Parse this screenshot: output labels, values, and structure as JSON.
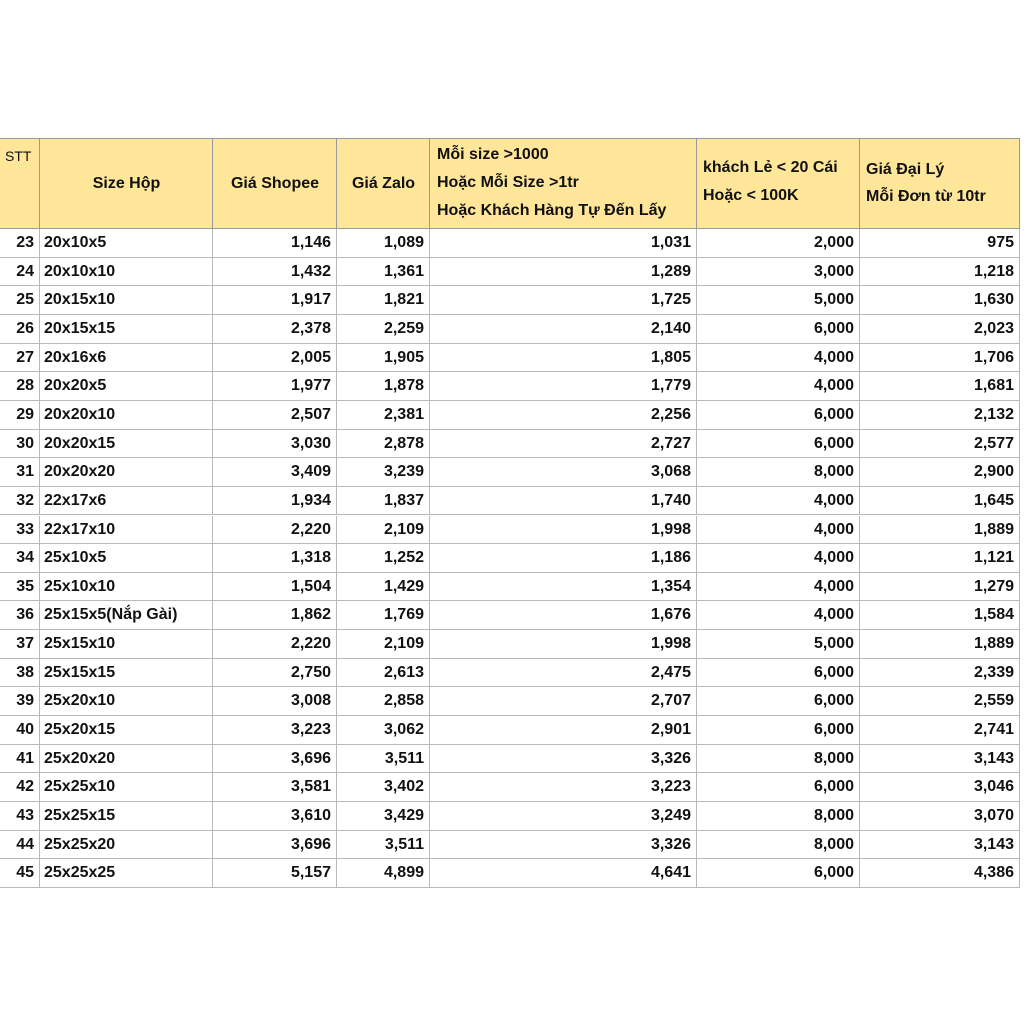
{
  "table": {
    "header": [
      [
        "STT"
      ],
      [
        "Size Hộp"
      ],
      [
        "Giá Shopee"
      ],
      [
        "Giá Zalo"
      ],
      [
        "Mỗi size >1000",
        "Hoặc Mỗi Size >1tr",
        "Hoặc Khách Hàng Tự Đến Lấy"
      ],
      [
        "khách Lẻ < 20 Cái",
        "Hoặc < 100K"
      ],
      [
        "Giá Đại Lý",
        "Mỗi Đơn từ 10tr"
      ]
    ],
    "rows": [
      [
        "23",
        "20x10x5",
        "1,146",
        "1,089",
        "1,031",
        "2,000",
        "975"
      ],
      [
        "24",
        "20x10x10",
        "1,432",
        "1,361",
        "1,289",
        "3,000",
        "1,218"
      ],
      [
        "25",
        "20x15x10",
        "1,917",
        "1,821",
        "1,725",
        "5,000",
        "1,630"
      ],
      [
        "26",
        "20x15x15",
        "2,378",
        "2,259",
        "2,140",
        "6,000",
        "2,023"
      ],
      [
        "27",
        "20x16x6",
        "2,005",
        "1,905",
        "1,805",
        "4,000",
        "1,706"
      ],
      [
        "28",
        "20x20x5",
        "1,977",
        "1,878",
        "1,779",
        "4,000",
        "1,681"
      ],
      [
        "29",
        "20x20x10",
        "2,507",
        "2,381",
        "2,256",
        "6,000",
        "2,132"
      ],
      [
        "30",
        "20x20x15",
        "3,030",
        "2,878",
        "2,727",
        "6,000",
        "2,577"
      ],
      [
        "31",
        "20x20x20",
        "3,409",
        "3,239",
        "3,068",
        "8,000",
        "2,900"
      ],
      [
        "32",
        "22x17x6",
        "1,934",
        "1,837",
        "1,740",
        "4,000",
        "1,645"
      ],
      [
        "33",
        "22x17x10",
        "2,220",
        "2,109",
        "1,998",
        "4,000",
        "1,889"
      ],
      [
        "34",
        "25x10x5",
        "1,318",
        "1,252",
        "1,186",
        "4,000",
        "1,121"
      ],
      [
        "35",
        "25x10x10",
        "1,504",
        "1,429",
        "1,354",
        "4,000",
        "1,279"
      ],
      [
        "36",
        "25x15x5(Nắp Gài)",
        "1,862",
        "1,769",
        "1,676",
        "4,000",
        "1,584"
      ],
      [
        "37",
        "25x15x10",
        "2,220",
        "2,109",
        "1,998",
        "5,000",
        "1,889"
      ],
      [
        "38",
        "25x15x15",
        "2,750",
        "2,613",
        "2,475",
        "6,000",
        "2,339"
      ],
      [
        "39",
        "25x20x10",
        "3,008",
        "2,858",
        "2,707",
        "6,000",
        "2,559"
      ],
      [
        "40",
        "25x20x15",
        "3,223",
        "3,062",
        "2,901",
        "6,000",
        "2,741"
      ],
      [
        "41",
        "25x20x20",
        "3,696",
        "3,511",
        "3,326",
        "8,000",
        "3,143"
      ],
      [
        "42",
        "25x25x10",
        "3,581",
        "3,402",
        "3,223",
        "6,000",
        "3,046"
      ],
      [
        "43",
        "25x25x15",
        "3,610",
        "3,429",
        "3,249",
        "8,000",
        "3,070"
      ],
      [
        "44",
        "25x25x20",
        "3,696",
        "3,511",
        "3,326",
        "8,000",
        "3,143"
      ],
      [
        "45",
        "25x25x25",
        "5,157",
        "4,899",
        "4,641",
        "6,000",
        "4,386"
      ]
    ]
  }
}
